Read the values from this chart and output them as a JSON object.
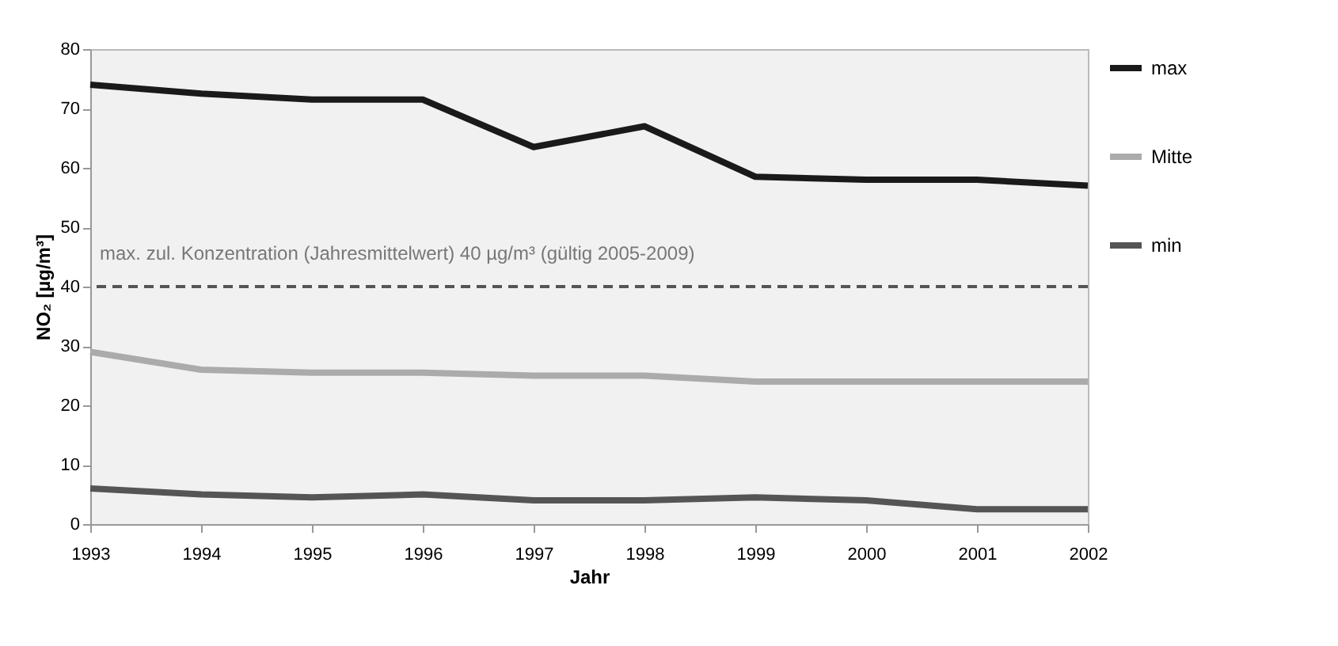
{
  "chart_data": {
    "type": "line",
    "xlabel": "Jahr",
    "ylabel": "NO₂ [µg/m³]",
    "categories": [
      "1993",
      "1994",
      "1995",
      "1996",
      "1997",
      "1998",
      "1999",
      "2000",
      "2001",
      "2002"
    ],
    "series": [
      {
        "name": "max",
        "color": "#1a1a1a",
        "values": [
          74,
          72.5,
          71.5,
          71.5,
          63.5,
          67,
          58.5,
          58,
          58,
          57
        ]
      },
      {
        "name": "Mitte",
        "color": "#ababab",
        "values": [
          29,
          26,
          25.5,
          25.5,
          25,
          25,
          24,
          24,
          24,
          24
        ]
      },
      {
        "name": "min",
        "color": "#555555",
        "values": [
          6,
          5,
          4.5,
          5,
          4,
          4,
          4.5,
          4,
          2.5,
          2.5
        ]
      }
    ],
    "ylim": [
      0,
      80
    ],
    "yticks": [
      0,
      10,
      20,
      30,
      40,
      50,
      60,
      70,
      80
    ],
    "ref_lines": [
      {
        "axis": "y",
        "value": 40,
        "label": "max. zul. Konzentration (Jahresmittelwert) 40 µg/m³ (gültig 2005-2009)",
        "color": "#555555",
        "line_style": "dashed"
      }
    ],
    "grid": false,
    "legend": "right",
    "marker": "none",
    "line_style": "solid"
  }
}
